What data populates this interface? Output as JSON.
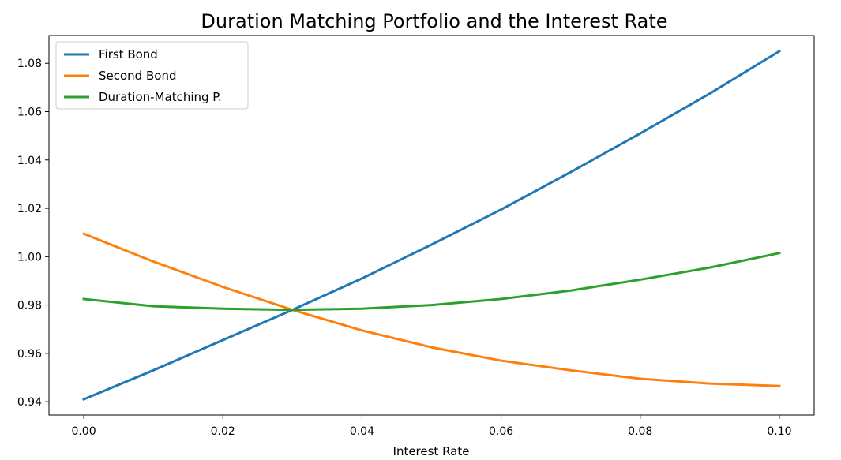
{
  "chart_data": {
    "type": "line",
    "title": "Duration Matching Portfolio and the Interest Rate",
    "xlabel": "Interest Rate",
    "ylabel": "",
    "xlim": [
      -0.005,
      0.105
    ],
    "ylim": [
      0.9345,
      1.0915
    ],
    "xticks": [
      0.0,
      0.02,
      0.04,
      0.06,
      0.08,
      0.1
    ],
    "xtick_labels": [
      "0.00",
      "0.02",
      "0.04",
      "0.06",
      "0.08",
      "0.10"
    ],
    "yticks": [
      0.94,
      0.96,
      0.98,
      1.0,
      1.02,
      1.04,
      1.06,
      1.08
    ],
    "ytick_labels": [
      "0.94",
      "0.96",
      "0.98",
      "1.00",
      "1.02",
      "1.04",
      "1.06",
      "1.08"
    ],
    "grid": false,
    "legend_position": "top-left",
    "x": [
      0.0,
      0.01,
      0.02,
      0.03,
      0.04,
      0.05,
      0.06,
      0.07,
      0.08,
      0.09,
      0.1
    ],
    "series": [
      {
        "name": "First Bond",
        "color": "#1f77b4",
        "values": [
          0.941,
          0.953,
          0.9655,
          0.978,
          0.991,
          1.005,
          1.0195,
          1.035,
          1.051,
          1.0675,
          1.085
        ]
      },
      {
        "name": "Second Bond",
        "color": "#ff7f0e",
        "values": [
          1.0095,
          0.998,
          0.9875,
          0.978,
          0.9695,
          0.9625,
          0.957,
          0.953,
          0.9495,
          0.9475,
          0.9465
        ]
      },
      {
        "name": "Duration-Matching P.",
        "color": "#2ca02c",
        "values": [
          0.9825,
          0.9795,
          0.9785,
          0.978,
          0.9785,
          0.98,
          0.9825,
          0.986,
          0.9905,
          0.9955,
          1.0015
        ]
      }
    ]
  }
}
